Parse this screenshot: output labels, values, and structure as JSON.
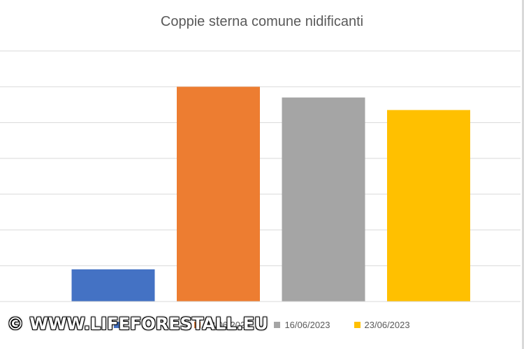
{
  "chart_data": {
    "type": "bar",
    "title": "Coppie sterna comune nidificanti",
    "xlabel": "",
    "ylabel": "",
    "categories": [
      "",
      "08/06/2023",
      "16/06/2023",
      "23/06/2023"
    ],
    "values": [
      9,
      60,
      57,
      53.5
    ],
    "colors": [
      "#4472C4",
      "#ED7D31",
      "#A5A5A5",
      "#FFC000"
    ],
    "ylim": [
      0,
      70
    ],
    "grid": true,
    "legend": "bottom",
    "series_labels": [
      "",
      "08/06/2023",
      "16/06/2023",
      "23/06/2023"
    ]
  },
  "watermark": "© WWW.LIFEFORESTALL.EU"
}
